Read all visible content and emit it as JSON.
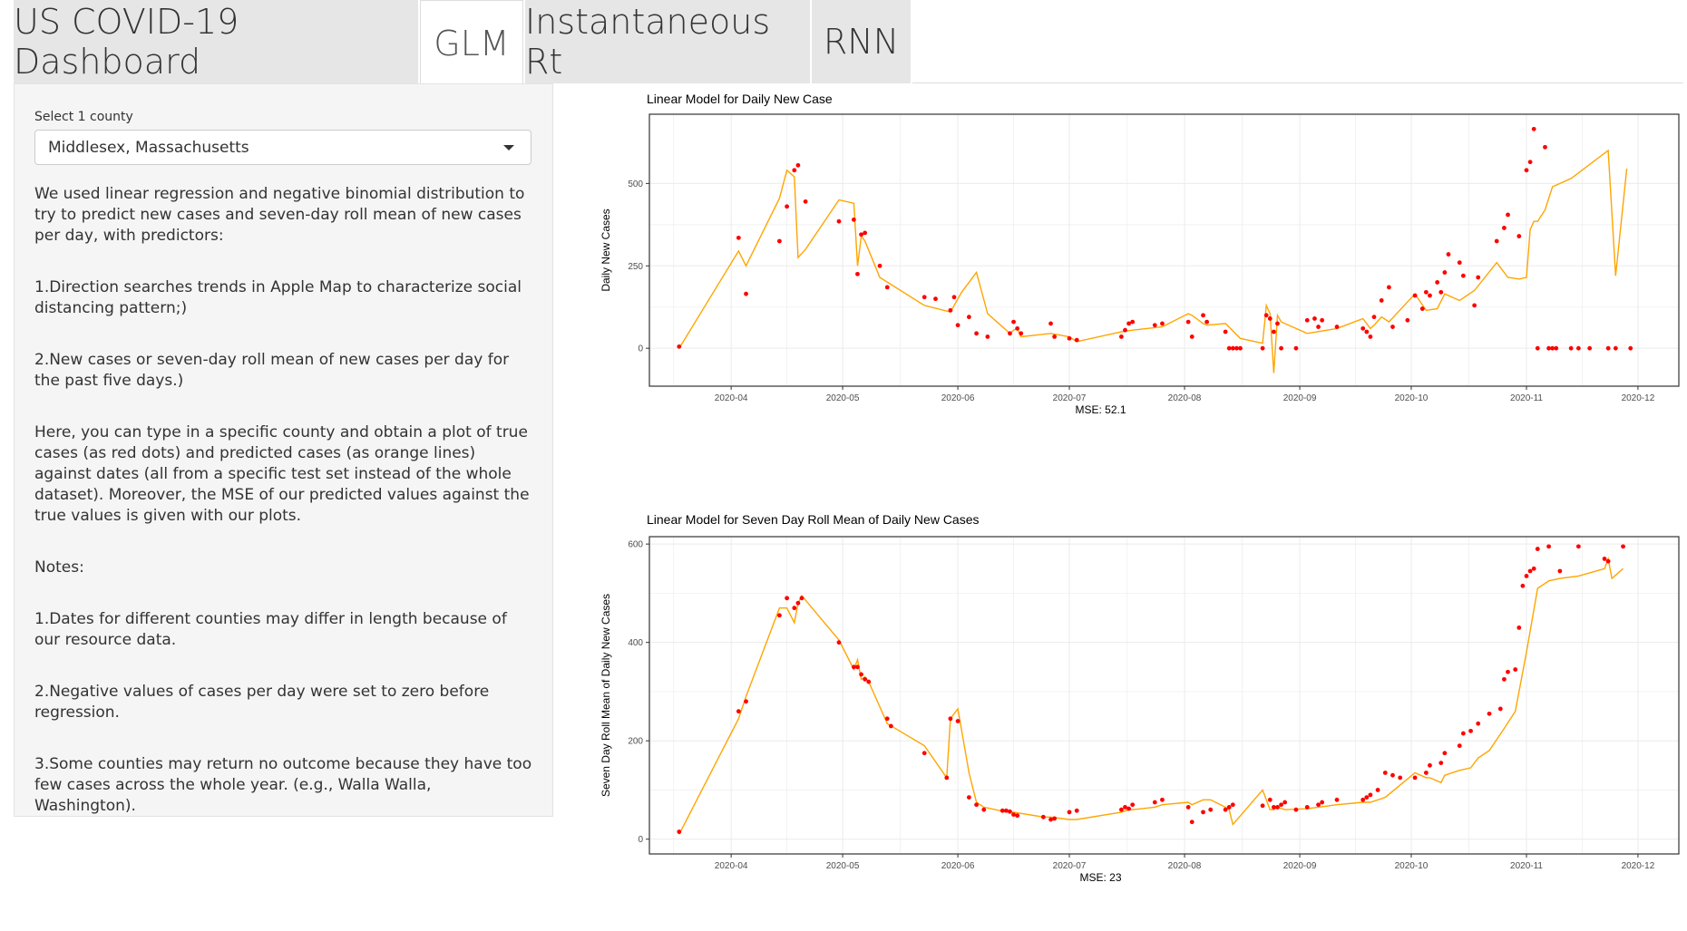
{
  "tabs": [
    {
      "label": "US COVID-19 Dashboard",
      "active": false
    },
    {
      "label": "GLM",
      "active": true
    },
    {
      "label": "Instantaneous Rt",
      "active": false
    },
    {
      "label": "RNN",
      "active": false
    }
  ],
  "sidebar": {
    "select_label": "Select 1 county",
    "select_value": "Middlesex, Massachusetts",
    "paragraphs": [
      "We used linear regression and negative binomial distribution to try to predict new cases and seven-day roll mean of new cases per day, with predictors:",
      "1.Direction searches trends in Apple Map to characterize social distancing pattern;)",
      "2.New cases or seven-day roll mean of new cases per day for the past five days.)",
      "Here, you can type in a specific county and obtain a plot of true cases (as red dots) and predicted cases (as orange lines) against dates (all from a specific test set instead of the whole dataset). Moreover, the MSE of our predicted values against the true values is given with our plots.",
      "Notes:",
      "1.Dates for different counties may differ in length because of our resource data.",
      "2.Negative values of cases per day were set to zero before regression.",
      "3.Some counties may return no outcome because they have too few cases across the whole year. (e.g., Walla Walla, Washington)."
    ]
  },
  "chart_data": [
    {
      "type": "scatter",
      "title": "Linear Model for Daily New Case",
      "xlabel": "MSE:  52.1",
      "ylabel": "Daily New Cases",
      "x_ticks": [
        "2020-04",
        "2020-05",
        "2020-06",
        "2020-07",
        "2020-08",
        "2020-09",
        "2020-10",
        "2020-11",
        "2020-12"
      ],
      "y_ticks": [
        0,
        250,
        500
      ],
      "ylim": [
        -115,
        710
      ],
      "xlim": [
        "2020-03-10",
        "2020-12-12"
      ],
      "grid": true,
      "colors": {
        "points": "#ff0000",
        "line": "#ffa500"
      },
      "series": [
        {
          "name": "true cases",
          "style": "points",
          "x": [
            "2020-03-18",
            "2020-04-03",
            "2020-04-05",
            "2020-04-14",
            "2020-04-16",
            "2020-04-18",
            "2020-04-19",
            "2020-04-21",
            "2020-04-30",
            "2020-05-04",
            "2020-05-05",
            "2020-05-06",
            "2020-05-07",
            "2020-05-11",
            "2020-05-13",
            "2020-05-23",
            "2020-05-26",
            "2020-05-30",
            "2020-05-31",
            "2020-06-01",
            "2020-06-04",
            "2020-06-06",
            "2020-06-09",
            "2020-06-15",
            "2020-06-16",
            "2020-06-17",
            "2020-06-18",
            "2020-06-26",
            "2020-06-27",
            "2020-07-01",
            "2020-07-03",
            "2020-07-15",
            "2020-07-16",
            "2020-07-17",
            "2020-07-18",
            "2020-07-24",
            "2020-07-26",
            "2020-08-02",
            "2020-08-03",
            "2020-08-06",
            "2020-08-07",
            "2020-08-12",
            "2020-08-13",
            "2020-08-14",
            "2020-08-15",
            "2020-08-16",
            "2020-08-22",
            "2020-08-23",
            "2020-08-24",
            "2020-08-25",
            "2020-08-26",
            "2020-08-27",
            "2020-08-31",
            "2020-09-03",
            "2020-09-05",
            "2020-09-06",
            "2020-09-07",
            "2020-09-11",
            "2020-09-18",
            "2020-09-19",
            "2020-09-20",
            "2020-09-21",
            "2020-09-23",
            "2020-09-25",
            "2020-09-26",
            "2020-09-30",
            "2020-10-02",
            "2020-10-04",
            "2020-10-05",
            "2020-10-06",
            "2020-10-08",
            "2020-10-09",
            "2020-10-10",
            "2020-10-11",
            "2020-10-14",
            "2020-10-15",
            "2020-10-18",
            "2020-10-19",
            "2020-10-24",
            "2020-10-26",
            "2020-10-27",
            "2020-10-30",
            "2020-11-01",
            "2020-11-02",
            "2020-11-03",
            "2020-11-04",
            "2020-11-06",
            "2020-11-07",
            "2020-11-08",
            "2020-11-09",
            "2020-11-13",
            "2020-11-15",
            "2020-11-18",
            "2020-11-23",
            "2020-11-25",
            "2020-11-29"
          ],
          "y": [
            5,
            335,
            165,
            325,
            430,
            540,
            555,
            445,
            385,
            390,
            225,
            345,
            350,
            250,
            185,
            155,
            150,
            115,
            155,
            70,
            95,
            45,
            35,
            45,
            80,
            60,
            45,
            75,
            35,
            30,
            25,
            35,
            55,
            75,
            80,
            70,
            75,
            80,
            35,
            100,
            80,
            50,
            0,
            0,
            0,
            0,
            0,
            100,
            90,
            50,
            75,
            0,
            0,
            85,
            90,
            65,
            85,
            65,
            60,
            50,
            35,
            95,
            145,
            185,
            65,
            85,
            160,
            120,
            170,
            160,
            200,
            170,
            230,
            285,
            260,
            220,
            130,
            215,
            325,
            365,
            405,
            340,
            540,
            565,
            665,
            0,
            610,
            0,
            0,
            0,
            0,
            0,
            0,
            0,
            0,
            0
          ]
        },
        {
          "name": "predicted cases",
          "style": "line",
          "x": [
            "2020-03-18",
            "2020-04-03",
            "2020-04-05",
            "2020-04-14",
            "2020-04-16",
            "2020-04-18",
            "2020-04-19",
            "2020-04-21",
            "2020-04-30",
            "2020-05-04",
            "2020-05-05",
            "2020-05-06",
            "2020-05-07",
            "2020-05-11",
            "2020-05-23",
            "2020-05-30",
            "2020-06-02",
            "2020-06-06",
            "2020-06-09",
            "2020-06-15",
            "2020-06-16",
            "2020-06-17",
            "2020-06-18",
            "2020-06-26",
            "2020-07-01",
            "2020-07-03",
            "2020-07-15",
            "2020-07-18",
            "2020-07-26",
            "2020-08-02",
            "2020-08-03",
            "2020-08-06",
            "2020-08-07",
            "2020-08-12",
            "2020-08-16",
            "2020-08-22",
            "2020-08-23",
            "2020-08-24",
            "2020-08-25",
            "2020-08-26",
            "2020-08-27",
            "2020-09-03",
            "2020-09-11",
            "2020-09-18",
            "2020-09-19",
            "2020-09-20",
            "2020-09-21",
            "2020-09-23",
            "2020-09-25",
            "2020-10-02",
            "2020-10-05",
            "2020-10-08",
            "2020-10-10",
            "2020-10-14",
            "2020-10-18",
            "2020-10-24",
            "2020-10-27",
            "2020-10-30",
            "2020-11-01",
            "2020-11-02",
            "2020-11-03",
            "2020-11-04",
            "2020-11-06",
            "2020-11-08",
            "2020-11-13",
            "2020-11-23",
            "2020-11-25",
            "2020-11-28"
          ],
          "y": [
            0,
            295,
            250,
            455,
            540,
            520,
            275,
            300,
            450,
            440,
            250,
            340,
            325,
            215,
            130,
            110,
            170,
            230,
            105,
            45,
            55,
            60,
            35,
            45,
            35,
            20,
            50,
            55,
            65,
            105,
            100,
            75,
            70,
            75,
            30,
            15,
            130,
            105,
            -75,
            100,
            80,
            45,
            60,
            90,
            75,
            60,
            70,
            95,
            80,
            165,
            115,
            120,
            165,
            145,
            175,
            260,
            215,
            210,
            215,
            360,
            385,
            385,
            420,
            490,
            515,
            600,
            220,
            545
          ]
        }
      ]
    },
    {
      "type": "scatter",
      "title": "Linear Model for Seven Day Roll Mean of Daily New Cases",
      "xlabel": "MSE:  23",
      "ylabel": "Seven Day Roll Mean of Daily New Cases",
      "x_ticks": [
        "2020-04",
        "2020-05",
        "2020-06",
        "2020-07",
        "2020-08",
        "2020-09",
        "2020-10",
        "2020-11",
        "2020-12"
      ],
      "y_ticks": [
        0,
        200,
        400,
        600
      ],
      "ylim": [
        -30,
        615
      ],
      "xlim": [
        "2020-03-10",
        "2020-12-12"
      ],
      "grid": true,
      "colors": {
        "points": "#ff0000",
        "line": "#ffa500"
      },
      "series": [
        {
          "name": "true cases",
          "style": "points",
          "x": [
            "2020-03-18",
            "2020-04-03",
            "2020-04-05",
            "2020-04-14",
            "2020-04-16",
            "2020-04-18",
            "2020-04-19",
            "2020-04-20",
            "2020-04-30",
            "2020-05-04",
            "2020-05-05",
            "2020-05-06",
            "2020-05-07",
            "2020-05-08",
            "2020-05-13",
            "2020-05-14",
            "2020-05-23",
            "2020-05-29",
            "2020-05-30",
            "2020-06-01",
            "2020-06-04",
            "2020-06-06",
            "2020-06-08",
            "2020-06-13",
            "2020-06-14",
            "2020-06-15",
            "2020-06-16",
            "2020-06-17",
            "2020-06-24",
            "2020-06-26",
            "2020-06-27",
            "2020-07-01",
            "2020-07-03",
            "2020-07-15",
            "2020-07-16",
            "2020-07-17",
            "2020-07-18",
            "2020-07-24",
            "2020-07-26",
            "2020-08-02",
            "2020-08-03",
            "2020-08-06",
            "2020-08-08",
            "2020-08-12",
            "2020-08-13",
            "2020-08-14",
            "2020-08-22",
            "2020-08-24",
            "2020-08-25",
            "2020-08-26",
            "2020-08-27",
            "2020-08-28",
            "2020-08-31",
            "2020-09-03",
            "2020-09-06",
            "2020-09-07",
            "2020-09-11",
            "2020-09-18",
            "2020-09-19",
            "2020-09-20",
            "2020-09-22",
            "2020-09-24",
            "2020-09-26",
            "2020-09-28",
            "2020-10-02",
            "2020-10-05",
            "2020-10-06",
            "2020-10-09",
            "2020-10-10",
            "2020-10-14",
            "2020-10-15",
            "2020-10-17",
            "2020-10-19",
            "2020-10-22",
            "2020-10-25",
            "2020-10-26",
            "2020-10-27",
            "2020-10-29",
            "2020-10-30",
            "2020-10-31",
            "2020-11-01",
            "2020-11-02",
            "2020-11-03",
            "2020-11-04",
            "2020-11-07",
            "2020-11-10",
            "2020-11-15",
            "2020-11-22",
            "2020-11-23",
            "2020-11-27"
          ],
          "y": [
            15,
            260,
            280,
            455,
            490,
            470,
            480,
            490,
            400,
            350,
            350,
            335,
            325,
            320,
            245,
            230,
            175,
            125,
            245,
            240,
            85,
            70,
            60,
            58,
            58,
            56,
            50,
            48,
            45,
            40,
            42,
            55,
            58,
            60,
            65,
            62,
            70,
            75,
            80,
            65,
            35,
            55,
            60,
            60,
            65,
            70,
            68,
            80,
            65,
            65,
            70,
            75,
            60,
            65,
            70,
            75,
            80,
            80,
            85,
            90,
            100,
            135,
            130,
            125,
            125,
            135,
            150,
            155,
            175,
            190,
            215,
            220,
            235,
            255,
            265,
            325,
            340,
            345,
            430,
            515,
            535,
            545,
            550,
            590,
            595,
            545,
            595,
            570,
            565,
            595
          ]
        },
        {
          "name": "predicted cases",
          "style": "line",
          "x": [
            "2020-03-18",
            "2020-04-03",
            "2020-04-05",
            "2020-04-14",
            "2020-04-16",
            "2020-04-18",
            "2020-04-19",
            "2020-04-20",
            "2020-04-30",
            "2020-05-04",
            "2020-05-05",
            "2020-05-06",
            "2020-05-07",
            "2020-05-08",
            "2020-05-13",
            "2020-05-23",
            "2020-05-29",
            "2020-05-30",
            "2020-06-01",
            "2020-06-04",
            "2020-06-06",
            "2020-06-08",
            "2020-06-13",
            "2020-06-14",
            "2020-06-15",
            "2020-06-16",
            "2020-06-24",
            "2020-06-26",
            "2020-07-01",
            "2020-07-03",
            "2020-07-15",
            "2020-07-17",
            "2020-07-18",
            "2020-07-24",
            "2020-07-26",
            "2020-08-02",
            "2020-08-03",
            "2020-08-06",
            "2020-08-08",
            "2020-08-12",
            "2020-08-13",
            "2020-08-14",
            "2020-08-22",
            "2020-08-24",
            "2020-08-25",
            "2020-08-26",
            "2020-08-28",
            "2020-09-03",
            "2020-09-11",
            "2020-09-18",
            "2020-09-20",
            "2020-09-24",
            "2020-10-02",
            "2020-10-05",
            "2020-10-06",
            "2020-10-09",
            "2020-10-10",
            "2020-10-14",
            "2020-10-17",
            "2020-10-19",
            "2020-10-22",
            "2020-10-26",
            "2020-10-29",
            "2020-10-30",
            "2020-11-01",
            "2020-11-04",
            "2020-11-07",
            "2020-11-10",
            "2020-11-15",
            "2020-11-22",
            "2020-11-23",
            "2020-11-24",
            "2020-11-27"
          ],
          "y": [
            10,
            245,
            290,
            470,
            470,
            440,
            480,
            495,
            405,
            345,
            365,
            325,
            330,
            320,
            235,
            190,
            125,
            245,
            265,
            135,
            75,
            65,
            57,
            56,
            56,
            55,
            45,
            45,
            40,
            40,
            55,
            60,
            60,
            65,
            70,
            75,
            70,
            80,
            80,
            65,
            60,
            30,
            100,
            60,
            60,
            65,
            60,
            62,
            70,
            75,
            75,
            85,
            135,
            125,
            125,
            115,
            130,
            140,
            145,
            165,
            180,
            225,
            260,
            300,
            380,
            510,
            525,
            530,
            535,
            550,
            570,
            530,
            550
          ]
        }
      ]
    }
  ]
}
